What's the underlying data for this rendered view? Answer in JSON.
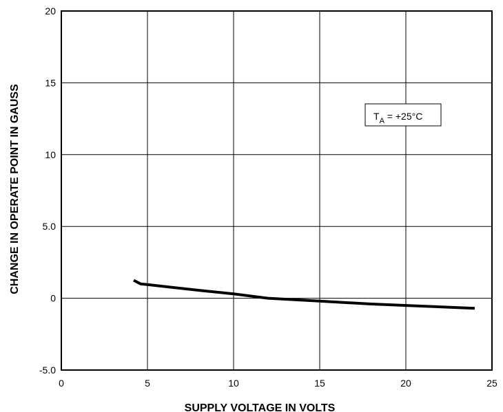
{
  "chart_data": {
    "type": "line",
    "title": "",
    "xlabel": "SUPPLY VOLTAGE IN VOLTS",
    "ylabel": "CHANGE IN OPERATE POINT IN GAUSS",
    "xlim": [
      0,
      25
    ],
    "ylim": [
      -5.0,
      20
    ],
    "x_ticks": [
      0,
      5,
      10,
      15,
      20,
      25
    ],
    "x_tick_labels": [
      "0",
      "5",
      "10",
      "15",
      "20",
      "25"
    ],
    "y_ticks": [
      -5,
      0,
      5,
      10,
      15,
      20
    ],
    "y_tick_labels": [
      "-5.0",
      "0",
      "5.0",
      "10",
      "15",
      "20"
    ],
    "grid": true,
    "annotation": {
      "symbol": "T",
      "subscript": "A",
      "text": " = +25°C"
    },
    "series": [
      {
        "x": [
          4.2,
          4.6,
          5.0,
          8.0,
          10.0,
          12.0,
          15.0,
          18.0,
          21.0,
          24.0
        ],
        "y": [
          1.25,
          1.0,
          0.95,
          0.55,
          0.3,
          0.0,
          -0.2,
          -0.4,
          -0.55,
          -0.7
        ]
      }
    ]
  }
}
